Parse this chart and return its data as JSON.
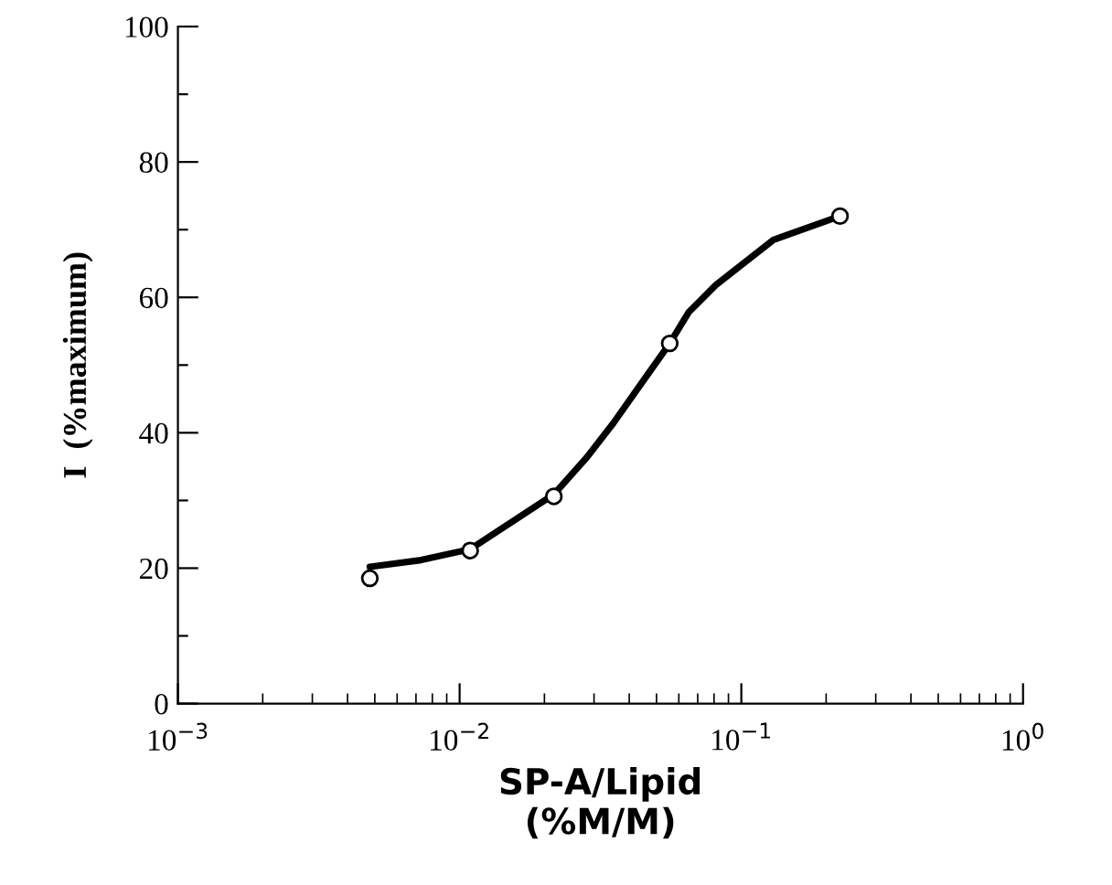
{
  "chart_data": {
    "type": "line",
    "xlabel": "SP-A/Lipid\n(%M/M)",
    "ylabel": "I  (%maximum)",
    "log": "x",
    "xlim": [
      0.001,
      1
    ],
    "xticks": [
      {
        "value": 0.001,
        "label": "10$^{−3}$"
      },
      {
        "value": 0.01,
        "label": "10$^{−2}$"
      },
      {
        "value": 0.1,
        "label": "10$^{−1}$"
      },
      {
        "value": 1,
        "label": "10$^{0}$"
      }
    ],
    "ylim": [
      0,
      100
    ],
    "yticks": [
      0,
      {
        "value": 10,
        "label": null
      },
      20,
      {
        "value": 30,
        "label": null
      },
      40,
      {
        "value": 50,
        "label": null
      },
      60,
      {
        "value": 70,
        "label": null
      },
      80,
      {
        "value": 90,
        "label": null
      },
      100
    ],
    "series": [
      {
        "color": "#000000",
        "marker": "none",
        "line_style": "solid",
        "x": [
          0.0048,
          0.0073,
          0.0109,
          0.0216,
          0.0282,
          0.0351,
          0.0447,
          0.0557,
          0.065,
          0.0811,
          0.13,
          0.224
        ],
        "values": [
          20.2,
          21.2,
          22.8,
          30.9,
          36.3,
          41.4,
          47.6,
          53.2,
          57.8,
          61.8,
          68.5,
          72.0
        ]
      },
      {
        "type": "scatter",
        "color": "#000000",
        "marker": "circle",
        "x": [
          0.0048,
          0.0109,
          0.0216,
          0.0557,
          0.224
        ],
        "values": [
          18.5,
          22.6,
          30.6,
          53.2,
          72.0
        ]
      }
    ]
  }
}
